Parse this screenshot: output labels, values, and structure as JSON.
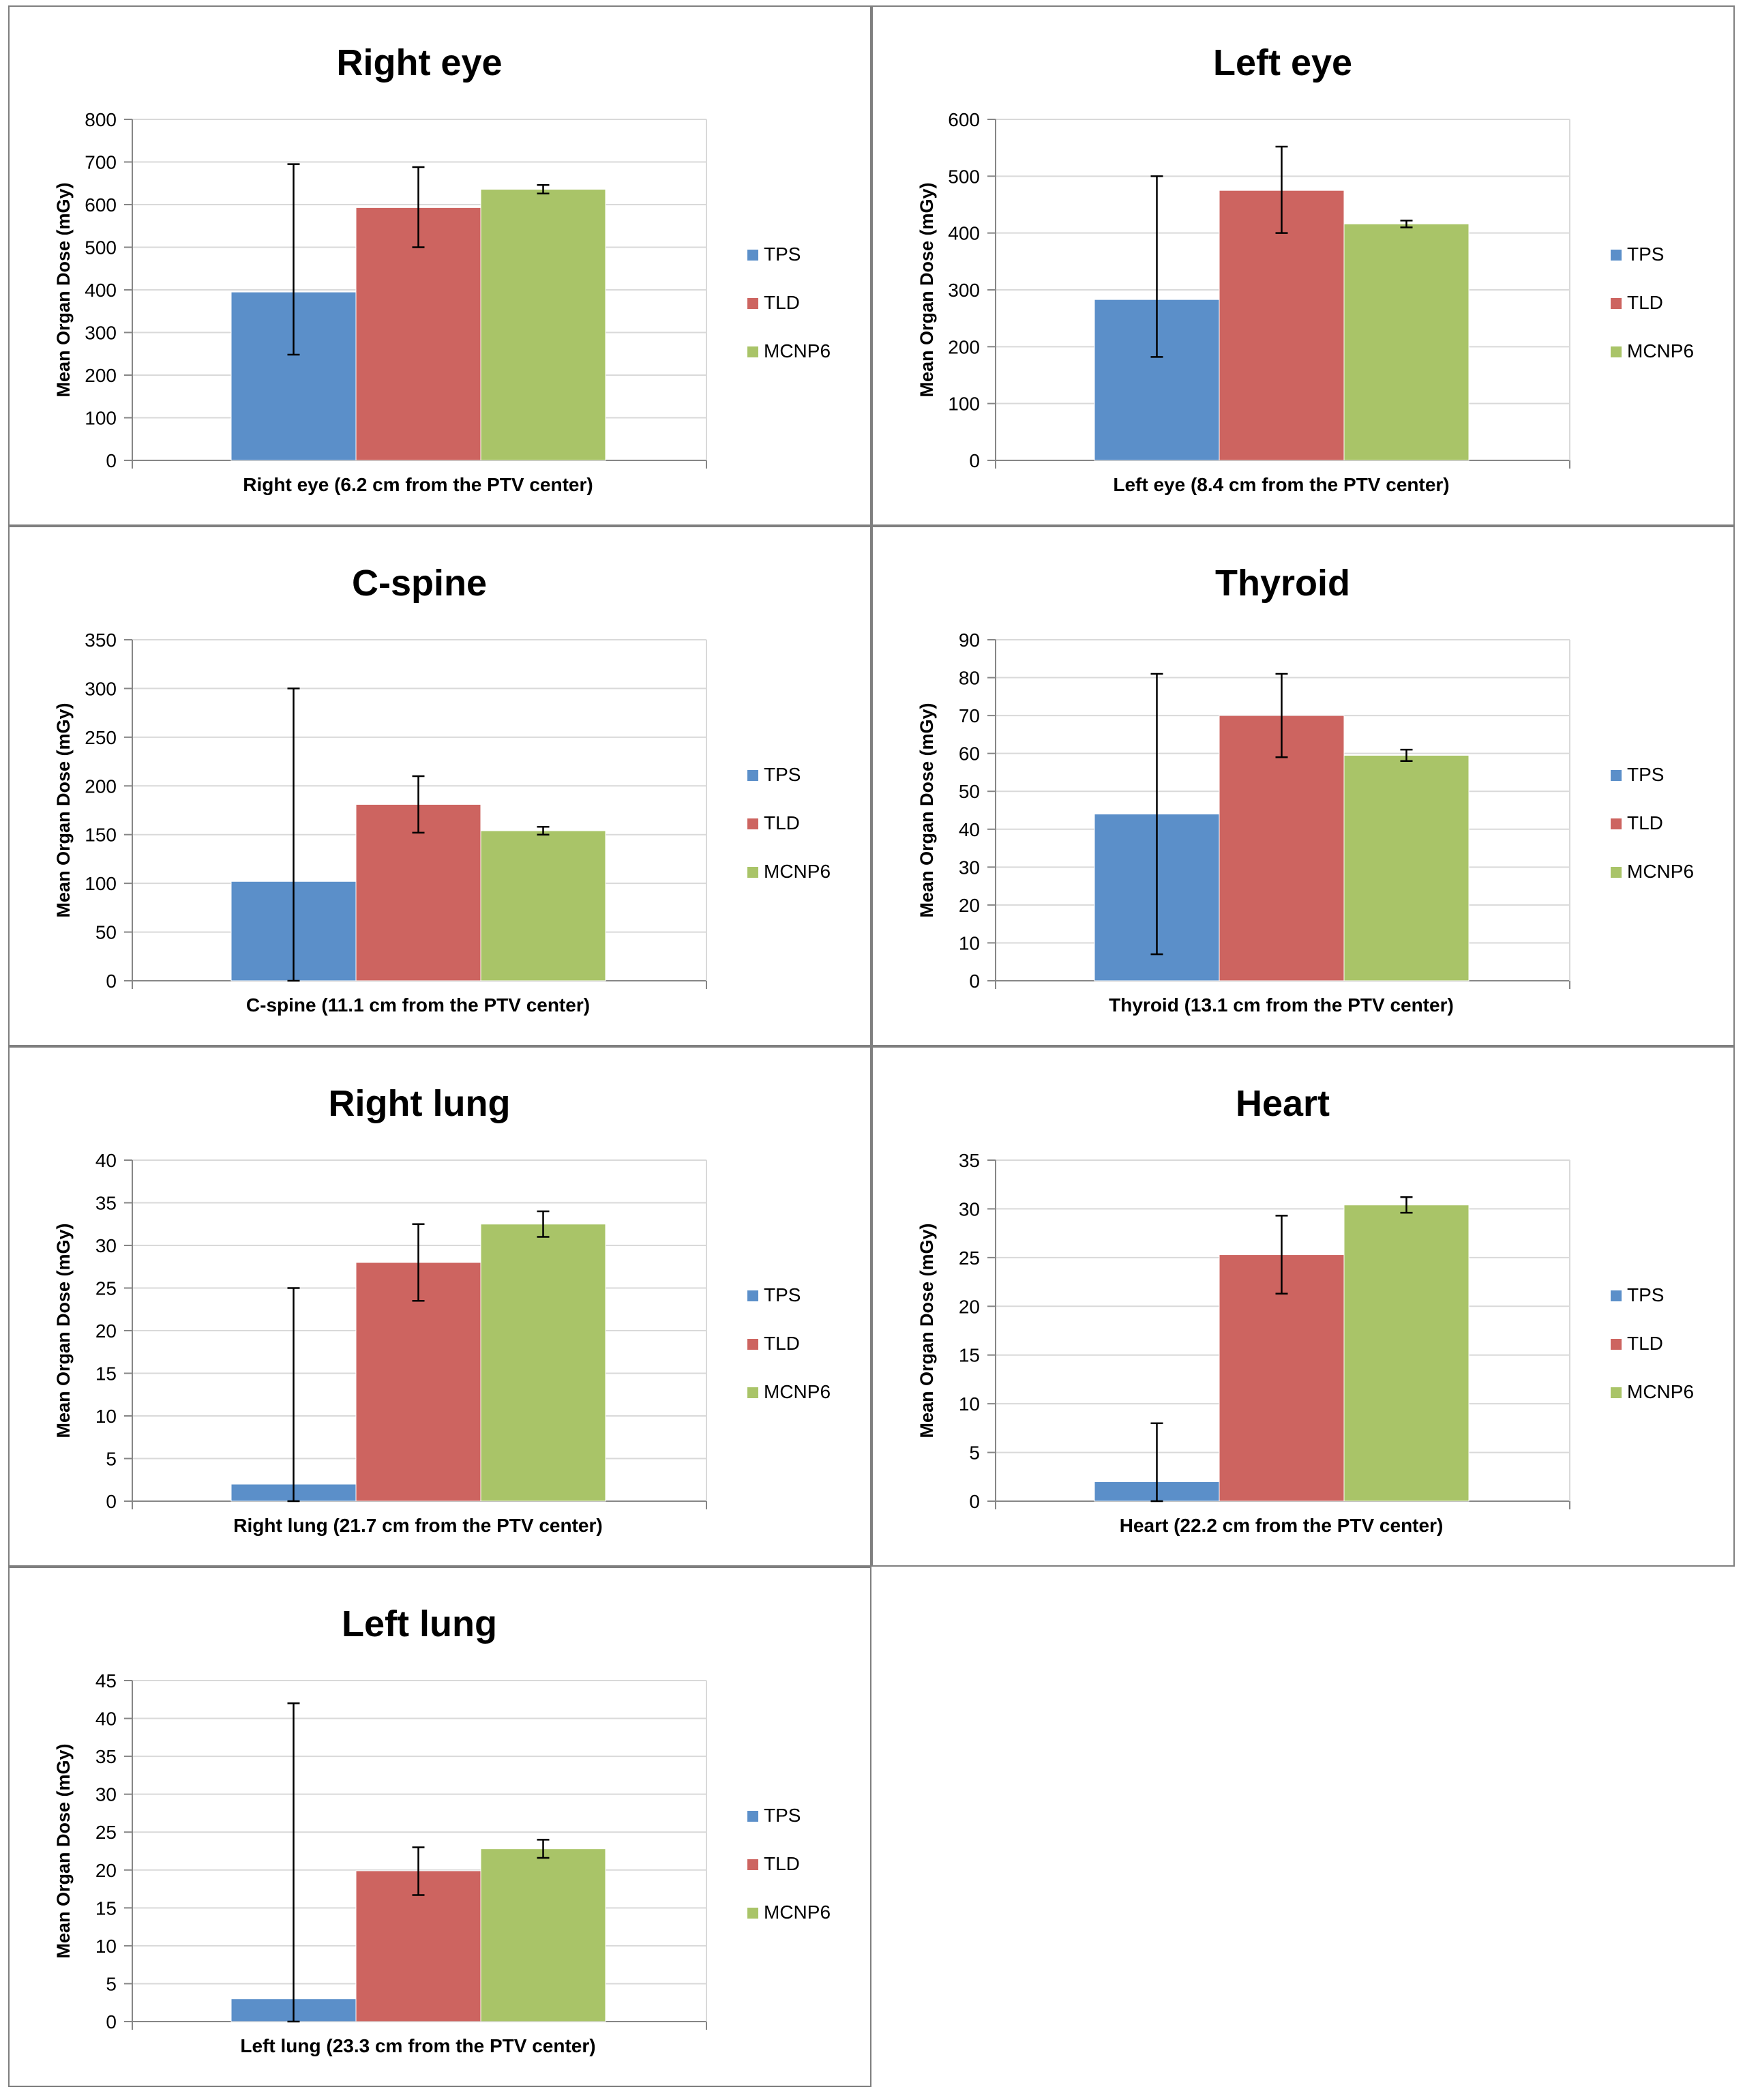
{
  "colors": {
    "TPS": "#5b8fc9",
    "TLD": "#cd6460",
    "MCNP6": "#a9c468",
    "grid": "#d9d9d9",
    "axis": "#868686",
    "errorbar": "#000000"
  },
  "legend": [
    "TPS",
    "TLD",
    "MCNP6"
  ],
  "ylabel": "Mean Organ Dose (mGy)",
  "chart_data": [
    {
      "type": "bar",
      "title": "Right eye",
      "ylabel": "Mean Organ Dose (mGy)",
      "categories": [
        "Right eye (6.2 cm from the PTV center)"
      ],
      "ylim": [
        0,
        800
      ],
      "yticks": [
        0,
        100,
        200,
        300,
        400,
        500,
        600,
        700,
        800
      ],
      "series": [
        {
          "name": "TPS",
          "values": [
            395
          ],
          "err_low": [
            248
          ],
          "err_high": [
            695
          ]
        },
        {
          "name": "TLD",
          "values": [
            593
          ],
          "err_low": [
            500
          ],
          "err_high": [
            688
          ]
        },
        {
          "name": "MCNP6",
          "values": [
            636
          ],
          "err_low": [
            626
          ],
          "err_high": [
            646
          ]
        }
      ],
      "legend": "right",
      "grid": true
    },
    {
      "type": "bar",
      "title": "Left eye",
      "ylabel": "Mean Organ Dose (mGy)",
      "categories": [
        "Left eye (8.4 cm from the PTV center)"
      ],
      "ylim": [
        0,
        600
      ],
      "yticks": [
        0,
        100,
        200,
        300,
        400,
        500,
        600
      ],
      "series": [
        {
          "name": "TPS",
          "values": [
            283
          ],
          "err_low": [
            182
          ],
          "err_high": [
            500
          ]
        },
        {
          "name": "TLD",
          "values": [
            475
          ],
          "err_low": [
            400
          ],
          "err_high": [
            552
          ]
        },
        {
          "name": "MCNP6",
          "values": [
            416
          ],
          "err_low": [
            410
          ],
          "err_high": [
            422
          ]
        }
      ],
      "legend": "right",
      "grid": true
    },
    {
      "type": "bar",
      "title": "C-spine",
      "ylabel": "Mean Organ Dose (mGy)",
      "categories": [
        "C-spine (11.1 cm from the PTV center)"
      ],
      "ylim": [
        0,
        350
      ],
      "yticks": [
        0,
        50,
        100,
        150,
        200,
        250,
        300,
        350
      ],
      "series": [
        {
          "name": "TPS",
          "values": [
            102
          ],
          "err_low": [
            0
          ],
          "err_high": [
            300
          ]
        },
        {
          "name": "TLD",
          "values": [
            181
          ],
          "err_low": [
            152
          ],
          "err_high": [
            210
          ]
        },
        {
          "name": "MCNP6",
          "values": [
            154
          ],
          "err_low": [
            150
          ],
          "err_high": [
            158
          ]
        }
      ],
      "legend": "right",
      "grid": true
    },
    {
      "type": "bar",
      "title": "Thyroid",
      "ylabel": "Mean Organ Dose (mGy)",
      "categories": [
        "Thyroid (13.1 cm from the PTV center)"
      ],
      "ylim": [
        0,
        90
      ],
      "yticks": [
        0,
        10,
        20,
        30,
        40,
        50,
        60,
        70,
        80,
        90
      ],
      "series": [
        {
          "name": "TPS",
          "values": [
            44
          ],
          "err_low": [
            7
          ],
          "err_high": [
            81
          ]
        },
        {
          "name": "TLD",
          "values": [
            70
          ],
          "err_low": [
            59
          ],
          "err_high": [
            81
          ]
        },
        {
          "name": "MCNP6",
          "values": [
            59.5
          ],
          "err_low": [
            58
          ],
          "err_high": [
            61
          ]
        }
      ],
      "legend": "right",
      "grid": true
    },
    {
      "type": "bar",
      "title": "Right lung",
      "ylabel": "Mean Organ Dose (mGy)",
      "categories": [
        "Right lung (21.7 cm from the PTV center)"
      ],
      "ylim": [
        0,
        40
      ],
      "yticks": [
        0,
        5,
        10,
        15,
        20,
        25,
        30,
        35,
        40
      ],
      "series": [
        {
          "name": "TPS",
          "values": [
            2
          ],
          "err_low": [
            0
          ],
          "err_high": [
            25
          ]
        },
        {
          "name": "TLD",
          "values": [
            28
          ],
          "err_low": [
            23.5
          ],
          "err_high": [
            32.5
          ]
        },
        {
          "name": "MCNP6",
          "values": [
            32.5
          ],
          "err_low": [
            31
          ],
          "err_high": [
            34
          ]
        }
      ],
      "legend": "right",
      "grid": true
    },
    {
      "type": "bar",
      "title": "Heart",
      "ylabel": "Mean Organ Dose (mGy)",
      "categories": [
        "Heart (22.2 cm from the PTV center)"
      ],
      "ylim": [
        0,
        35
      ],
      "yticks": [
        0,
        5,
        10,
        15,
        20,
        25,
        30,
        35
      ],
      "series": [
        {
          "name": "TPS",
          "values": [
            2
          ],
          "err_low": [
            0
          ],
          "err_high": [
            8
          ]
        },
        {
          "name": "TLD",
          "values": [
            25.3
          ],
          "err_low": [
            21.3
          ],
          "err_high": [
            29.3
          ]
        },
        {
          "name": "MCNP6",
          "values": [
            30.4
          ],
          "err_low": [
            29.6
          ],
          "err_high": [
            31.2
          ]
        }
      ],
      "legend": "right",
      "grid": true
    },
    {
      "type": "bar",
      "title": "Left lung",
      "ylabel": "Mean Organ Dose (mGy)",
      "categories": [
        "Left lung (23.3 cm from the PTV center)"
      ],
      "ylim": [
        0,
        45
      ],
      "yticks": [
        0,
        5,
        10,
        15,
        20,
        25,
        30,
        35,
        40,
        45
      ],
      "series": [
        {
          "name": "TPS",
          "values": [
            3
          ],
          "err_low": [
            0
          ],
          "err_high": [
            42
          ]
        },
        {
          "name": "TLD",
          "values": [
            19.9
          ],
          "err_low": [
            16.7
          ],
          "err_high": [
            23
          ]
        },
        {
          "name": "MCNP6",
          "values": [
            22.8
          ],
          "err_low": [
            21.6
          ],
          "err_high": [
            24
          ]
        }
      ],
      "legend": "right",
      "grid": true
    }
  ]
}
